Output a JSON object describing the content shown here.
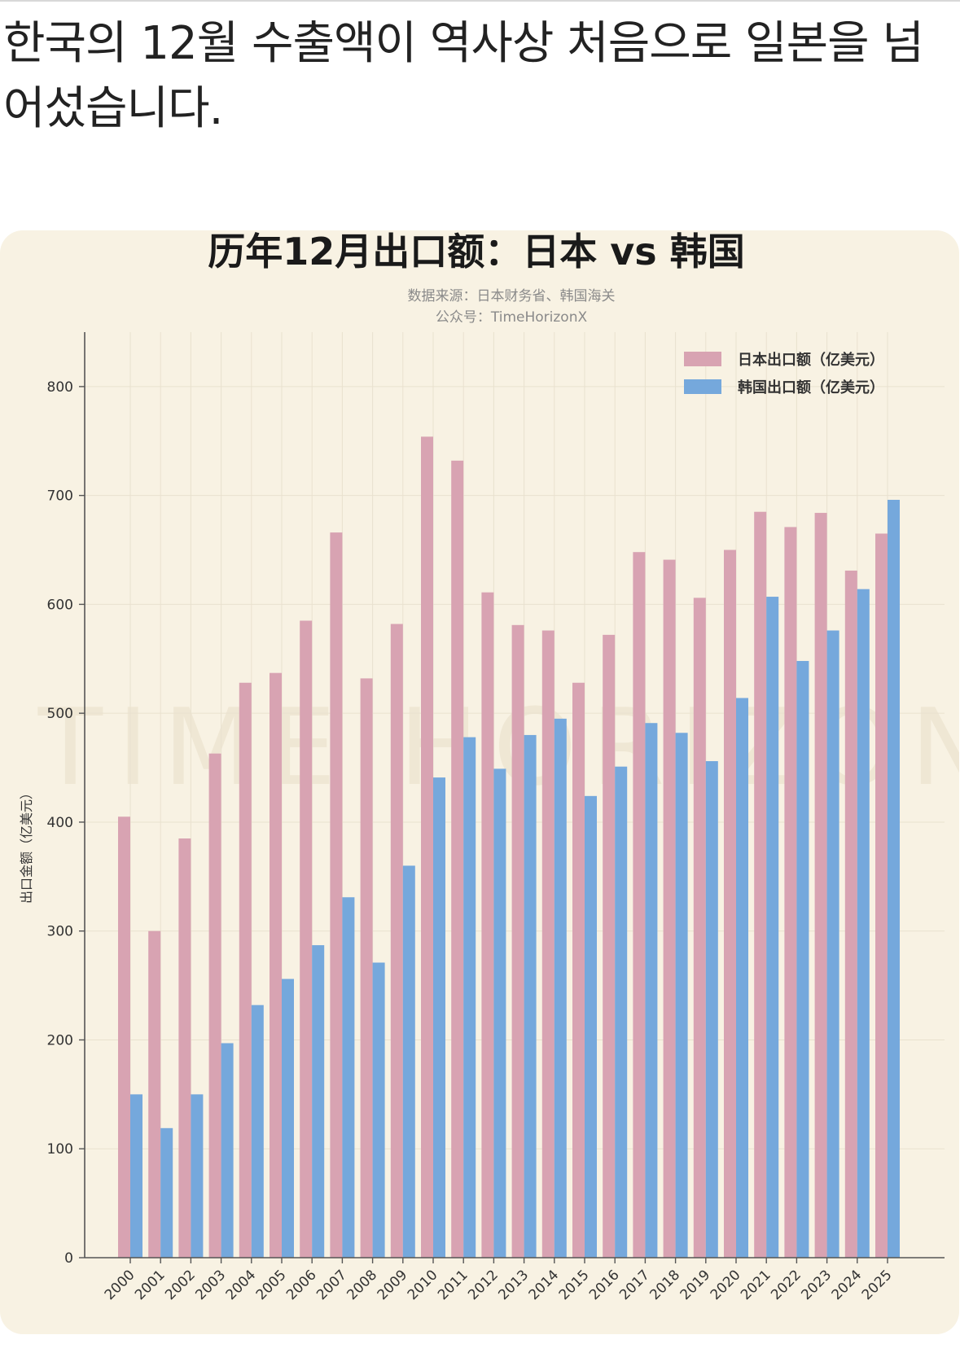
{
  "post": {
    "headline": "한국의 12월 수출액이 역사상 처음으로 일본을 넘어섰습니다."
  },
  "colors": {
    "card_bg": "#f8f2e3",
    "japan": "#d8a3b2",
    "korea": "#75a8dc",
    "axis": "#555555",
    "grid": "#e9e1cf"
  },
  "chart_data": {
    "type": "bar",
    "title": "历年12月出口额：日本 vs 韩国",
    "subtitle_lines": [
      "数据来源：日本财务省、韩国海关",
      "公众号：TimeHorizonX"
    ],
    "watermark": "TIME HORIZON",
    "ylabel": "出口金额（亿美元）",
    "xlabel": "",
    "ylim": [
      0,
      850
    ],
    "yticks": [
      0,
      100,
      200,
      300,
      400,
      500,
      600,
      700,
      800
    ],
    "categories": [
      "2000",
      "2001",
      "2002",
      "2003",
      "2004",
      "2005",
      "2006",
      "2007",
      "2008",
      "2009",
      "2010",
      "2011",
      "2012",
      "2013",
      "2014",
      "2015",
      "2016",
      "2017",
      "2018",
      "2019",
      "2020",
      "2021",
      "2022",
      "2023",
      "2024",
      "2025"
    ],
    "legend_position": "top-right",
    "series": [
      {
        "name": "日本出口额（亿美元）",
        "color": "#d8a3b2",
        "values": [
          405,
          300,
          385,
          463,
          528,
          537,
          585,
          666,
          532,
          582,
          754,
          732,
          611,
          581,
          576,
          528,
          572,
          648,
          641,
          606,
          650,
          685,
          671,
          684,
          631,
          665
        ]
      },
      {
        "name": "韩国出口额（亿美元）",
        "color": "#75a8dc",
        "values": [
          150,
          119,
          150,
          197,
          232,
          256,
          287,
          331,
          271,
          360,
          441,
          478,
          449,
          480,
          495,
          424,
          451,
          491,
          482,
          456,
          514,
          607,
          548,
          576,
          614,
          696
        ]
      }
    ]
  }
}
